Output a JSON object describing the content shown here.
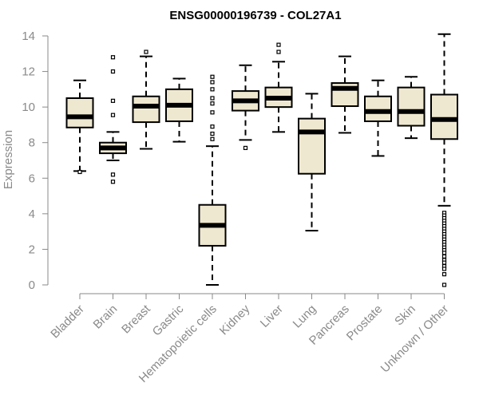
{
  "chart_data": {
    "type": "boxplot",
    "title": "ENSG00000196739 - COL27A1",
    "xlabel": "",
    "ylabel": "Expression",
    "ylim": [
      0,
      14
    ],
    "yticks": [
      0,
      2,
      4,
      6,
      8,
      10,
      12,
      14
    ],
    "box_fill": "#efe8d0",
    "line_color": "#000000",
    "categories": [
      "Bladder",
      "Brain",
      "Breast",
      "Gastric",
      "Hematopoietic cells",
      "Kidney",
      "Liver",
      "Lung",
      "Pancreas",
      "Prostate",
      "Skin",
      "Unknown / Other"
    ],
    "boxes": [
      {
        "name": "Bladder",
        "whisker_low": 6.4,
        "q1": 8.85,
        "median": 9.45,
        "q3": 10.5,
        "whisker_high": 11.5,
        "outliers": [
          6.35
        ]
      },
      {
        "name": "Brain",
        "whisker_low": 7.0,
        "q1": 7.4,
        "median": 7.7,
        "q3": 8.0,
        "whisker_high": 8.6,
        "outliers": [
          12.8,
          12.0,
          10.35,
          9.55,
          6.2,
          5.8
        ]
      },
      {
        "name": "Breast",
        "whisker_low": 7.65,
        "q1": 9.15,
        "median": 10.05,
        "q3": 10.6,
        "whisker_high": 12.85,
        "outliers": [
          13.1
        ]
      },
      {
        "name": "Gastric",
        "whisker_low": 8.05,
        "q1": 9.2,
        "median": 10.1,
        "q3": 11.0,
        "whisker_high": 11.6,
        "outliers": []
      },
      {
        "name": "Hematopoietic cells",
        "whisker_low": 0.0,
        "q1": 2.2,
        "median": 3.35,
        "q3": 4.5,
        "whisker_high": 7.8,
        "outliers": [
          11.7,
          11.4,
          11.0,
          10.5,
          10.2,
          9.7,
          8.9,
          8.5,
          8.2
        ]
      },
      {
        "name": "Kidney",
        "whisker_low": 8.15,
        "q1": 9.8,
        "median": 10.35,
        "q3": 10.9,
        "whisker_high": 12.35,
        "outliers": [
          7.7
        ]
      },
      {
        "name": "Liver",
        "whisker_low": 8.6,
        "q1": 10.0,
        "median": 10.5,
        "q3": 11.1,
        "whisker_high": 12.55,
        "outliers": [
          13.5,
          13.1
        ]
      },
      {
        "name": "Lung",
        "whisker_low": 3.05,
        "q1": 6.25,
        "median": 8.6,
        "q3": 9.35,
        "whisker_high": 10.75,
        "outliers": []
      },
      {
        "name": "Pancreas",
        "whisker_low": 8.55,
        "q1": 10.05,
        "median": 11.05,
        "q3": 11.35,
        "whisker_high": 12.85,
        "outliers": []
      },
      {
        "name": "Prostate",
        "whisker_low": 7.25,
        "q1": 9.2,
        "median": 9.75,
        "q3": 10.6,
        "whisker_high": 11.5,
        "outliers": []
      },
      {
        "name": "Skin",
        "whisker_low": 8.25,
        "q1": 8.95,
        "median": 9.75,
        "q3": 11.1,
        "whisker_high": 11.7,
        "outliers": []
      },
      {
        "name": "Unknown / Other",
        "whisker_low": 4.45,
        "q1": 8.2,
        "median": 9.3,
        "q3": 10.7,
        "whisker_high": 14.1,
        "outliers": [
          4.05,
          3.9,
          3.75,
          3.6,
          3.45,
          3.3,
          3.15,
          3.0,
          2.85,
          2.7,
          2.55,
          2.4,
          2.25,
          2.1,
          1.95,
          1.8,
          1.6,
          1.4,
          1.25,
          1.05,
          0.9,
          0.6,
          0.0
        ]
      }
    ]
  }
}
